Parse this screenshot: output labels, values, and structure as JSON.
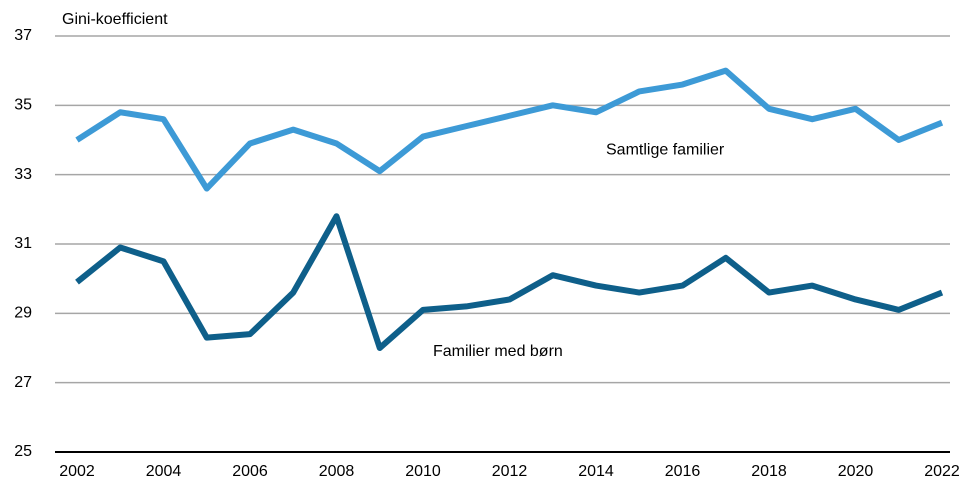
{
  "chart_data": {
    "type": "line",
    "y_axis_label": "Gini-koefficient",
    "x": [
      2002,
      2003,
      2004,
      2005,
      2006,
      2007,
      2008,
      2009,
      2010,
      2011,
      2012,
      2013,
      2014,
      2015,
      2016,
      2017,
      2018,
      2019,
      2020,
      2021,
      2022
    ],
    "series": [
      {
        "name": "Samtlige familier",
        "color": "#3d9ad6",
        "values": [
          34.0,
          34.8,
          34.6,
          32.6,
          33.9,
          34.3,
          33.9,
          33.1,
          34.1,
          34.4,
          34.7,
          35.0,
          34.8,
          35.4,
          35.6,
          36.0,
          34.9,
          34.6,
          34.9,
          34.0,
          34.5
        ]
      },
      {
        "name": "Familier med børn",
        "color": "#0e5f8a",
        "values": [
          29.9,
          30.9,
          30.5,
          28.3,
          28.4,
          29.6,
          31.8,
          28.0,
          29.1,
          29.2,
          29.4,
          30.1,
          29.8,
          29.6,
          29.8,
          30.6,
          29.6,
          29.8,
          29.4,
          29.1,
          29.6
        ]
      }
    ],
    "xlim": [
      2002,
      2022
    ],
    "xticks": [
      2002,
      2004,
      2006,
      2008,
      2010,
      2012,
      2014,
      2016,
      2018,
      2020,
      2022
    ],
    "ylim": [
      25,
      37
    ],
    "yticks": [
      25,
      27,
      29,
      31,
      33,
      35,
      37
    ],
    "grid": true
  }
}
